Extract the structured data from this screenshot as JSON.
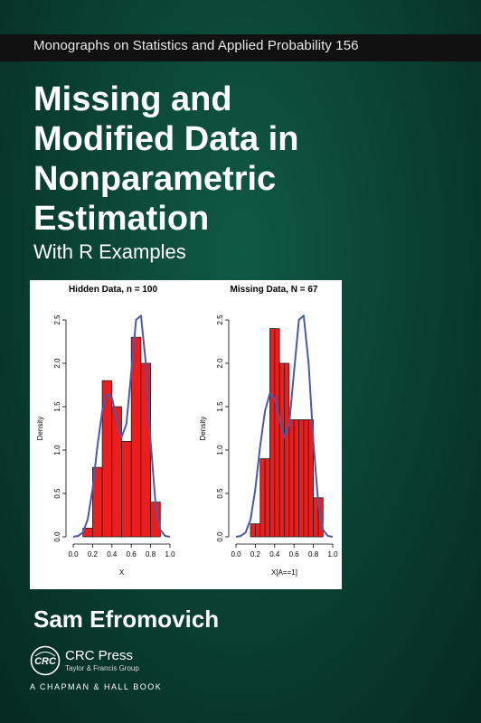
{
  "cover": {
    "series": "Monographs on Statistics and Applied Probability 156",
    "title_lines": [
      "Missing and",
      "Modified Data in",
      "Nonparametric",
      "Estimation"
    ],
    "subtitle": "With R Examples",
    "author": "Sam Efromovich",
    "publisher": {
      "name": "CRC Press",
      "group": "Taylor & Francis Group",
      "imprint": "A CHAPMAN & HALL BOOK",
      "logo_text": "CRC"
    },
    "colors": {
      "background": "#0b4434",
      "topbar": "#111111",
      "bar_fill": "#ee1c1c",
      "curve": "#4a5aa8"
    }
  },
  "chart_data": [
    {
      "type": "bar",
      "title": "Hidden Data,  n  =  100",
      "xlabel": "X",
      "ylabel": "Density",
      "xlim": [
        0,
        1
      ],
      "ylim": [
        0,
        2.5
      ],
      "xticks": [
        "0.0",
        "0.2",
        "0.4",
        "0.6",
        "0.8",
        "1.0"
      ],
      "yticks": [
        "0.0",
        "0.5",
        "1.0",
        "1.5",
        "2.0",
        "2.5"
      ],
      "bin_edges": [
        0.1,
        0.2,
        0.3,
        0.4,
        0.5,
        0.6,
        0.7,
        0.8,
        0.9
      ],
      "values": [
        0.1,
        0.8,
        1.8,
        1.5,
        1.1,
        2.3,
        2.0,
        0.4
      ],
      "curve_x": [
        0.0,
        0.05,
        0.1,
        0.15,
        0.2,
        0.25,
        0.3,
        0.35,
        0.4,
        0.45,
        0.5,
        0.55,
        0.6,
        0.65,
        0.7,
        0.75,
        0.8,
        0.85,
        0.9,
        0.95,
        1.0
      ],
      "curve_y": [
        0.0,
        0.01,
        0.05,
        0.2,
        0.55,
        1.05,
        1.45,
        1.65,
        1.6,
        1.35,
        1.15,
        1.3,
        1.9,
        2.5,
        2.55,
        2.0,
        1.1,
        0.4,
        0.08,
        0.01,
        0.0
      ]
    },
    {
      "type": "bar",
      "title": "Missing Data,  N  =  67",
      "xlabel": "X[A==1]",
      "ylabel": "Density",
      "xlim": [
        0,
        1
      ],
      "ylim": [
        0,
        2.5
      ],
      "xticks": [
        "0.0",
        "0.2",
        "0.4",
        "0.6",
        "0.8",
        "1.0"
      ],
      "yticks": [
        "0.0",
        "0.5",
        "1.0",
        "1.5",
        "2.0",
        "2.5"
      ],
      "bin_edges": [
        0.1,
        0.15,
        0.2,
        0.25,
        0.3,
        0.35,
        0.4,
        0.45,
        0.5,
        0.55,
        0.6,
        0.65,
        0.7,
        0.75,
        0.8,
        0.85,
        0.9
      ],
      "values": [
        0.0,
        0.15,
        0.15,
        0.9,
        0.9,
        2.4,
        2.4,
        2.0,
        2.0,
        1.35,
        1.35,
        1.35,
        1.35,
        1.35,
        0.45,
        0.45
      ],
      "curve_x": [
        0.0,
        0.05,
        0.1,
        0.15,
        0.2,
        0.25,
        0.3,
        0.35,
        0.4,
        0.45,
        0.5,
        0.55,
        0.6,
        0.65,
        0.7,
        0.75,
        0.8,
        0.85,
        0.9,
        0.95,
        1.0
      ],
      "curve_y": [
        0.0,
        0.01,
        0.05,
        0.2,
        0.55,
        1.05,
        1.45,
        1.65,
        1.6,
        1.35,
        1.15,
        1.3,
        1.9,
        2.5,
        2.55,
        2.0,
        1.1,
        0.4,
        0.08,
        0.01,
        0.0
      ]
    }
  ]
}
